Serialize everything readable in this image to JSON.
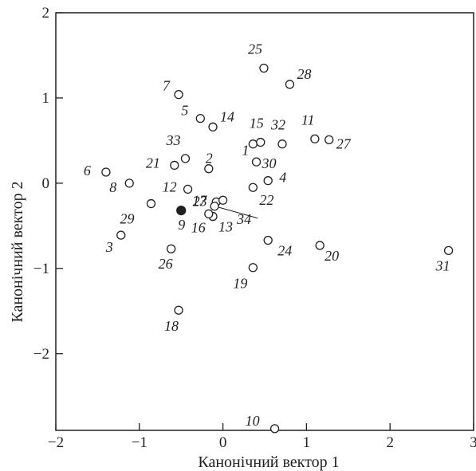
{
  "chart_data": {
    "type": "scatter",
    "xlabel": "Канонічний вектор 1",
    "ylabel": "Канонічний вектор 2",
    "xlim": [
      -2,
      3
    ],
    "ylim": [
      -2.9,
      2
    ],
    "xticks": [
      -2,
      -1,
      0,
      1,
      2,
      3
    ],
    "yticks": [
      -2,
      -1,
      0,
      1,
      2
    ],
    "grid": false,
    "colors": {
      "axis": "#231f20",
      "open_marker": "#231f20",
      "filled_marker": "#231f20"
    },
    "points": [
      {
        "label": "1",
        "x": 0.36,
        "y": 0.46,
        "marker": "open"
      },
      {
        "label": "2",
        "x": -0.17,
        "y": 0.17,
        "marker": "open"
      },
      {
        "label": "3",
        "x": -1.22,
        "y": -0.61,
        "marker": "open"
      },
      {
        "label": "4",
        "x": 0.54,
        "y": 0.03,
        "marker": "open"
      },
      {
        "label": "5",
        "x": -0.27,
        "y": 0.76,
        "marker": "open"
      },
      {
        "label": "6",
        "x": -1.4,
        "y": 0.13,
        "marker": "open"
      },
      {
        "label": "7",
        "x": -0.53,
        "y": 1.04,
        "marker": "open"
      },
      {
        "label": "8",
        "x": -1.12,
        "y": 0.0,
        "marker": "open"
      },
      {
        "label": "9",
        "x": -0.5,
        "y": -0.32,
        "marker": "filled"
      },
      {
        "label": "10",
        "x": 0.62,
        "y": -2.88,
        "marker": "open"
      },
      {
        "label": "11",
        "x": 1.1,
        "y": 0.52,
        "marker": "open"
      },
      {
        "label": "12",
        "x": -0.42,
        "y": -0.07,
        "marker": "open"
      },
      {
        "label": "13",
        "x": -0.12,
        "y": -0.39,
        "marker": "open"
      },
      {
        "label": "14",
        "x": -0.12,
        "y": 0.66,
        "marker": "open"
      },
      {
        "label": "15",
        "x": 0.45,
        "y": 0.48,
        "marker": "open"
      },
      {
        "label": "16",
        "x": -0.17,
        "y": -0.36,
        "marker": "open"
      },
      {
        "label": "17",
        "x": -0.08,
        "y": -0.22,
        "marker": "open"
      },
      {
        "label": "18",
        "x": -0.53,
        "y": -1.49,
        "marker": "open"
      },
      {
        "label": "19",
        "x": 0.36,
        "y": -0.99,
        "marker": "open"
      },
      {
        "label": "20",
        "x": 1.16,
        "y": -0.73,
        "marker": "open"
      },
      {
        "label": "21",
        "x": -0.58,
        "y": 0.21,
        "marker": "open"
      },
      {
        "label": "22",
        "x": 0.36,
        "y": -0.05,
        "marker": "open"
      },
      {
        "label": "23",
        "x": 0.0,
        "y": -0.2,
        "marker": "open"
      },
      {
        "label": "24",
        "x": 0.54,
        "y": -0.67,
        "marker": "open"
      },
      {
        "label": "25",
        "x": 0.49,
        "y": 1.35,
        "marker": "open"
      },
      {
        "label": "26",
        "x": -0.62,
        "y": -0.77,
        "marker": "open"
      },
      {
        "label": "27",
        "x": 1.27,
        "y": 0.51,
        "marker": "open"
      },
      {
        "label": "28",
        "x": 0.8,
        "y": 1.16,
        "marker": "open"
      },
      {
        "label": "29",
        "x": -0.86,
        "y": -0.24,
        "marker": "open"
      },
      {
        "label": "30",
        "x": 0.4,
        "y": 0.25,
        "marker": "open"
      },
      {
        "label": "31",
        "x": 2.7,
        "y": -0.79,
        "marker": "open"
      },
      {
        "label": "32",
        "x": 0.71,
        "y": 0.46,
        "marker": "open"
      },
      {
        "label": "33",
        "x": -0.45,
        "y": 0.29,
        "marker": "open"
      },
      {
        "label": "34",
        "x": -0.1,
        "y": -0.27,
        "marker": "open"
      }
    ]
  }
}
